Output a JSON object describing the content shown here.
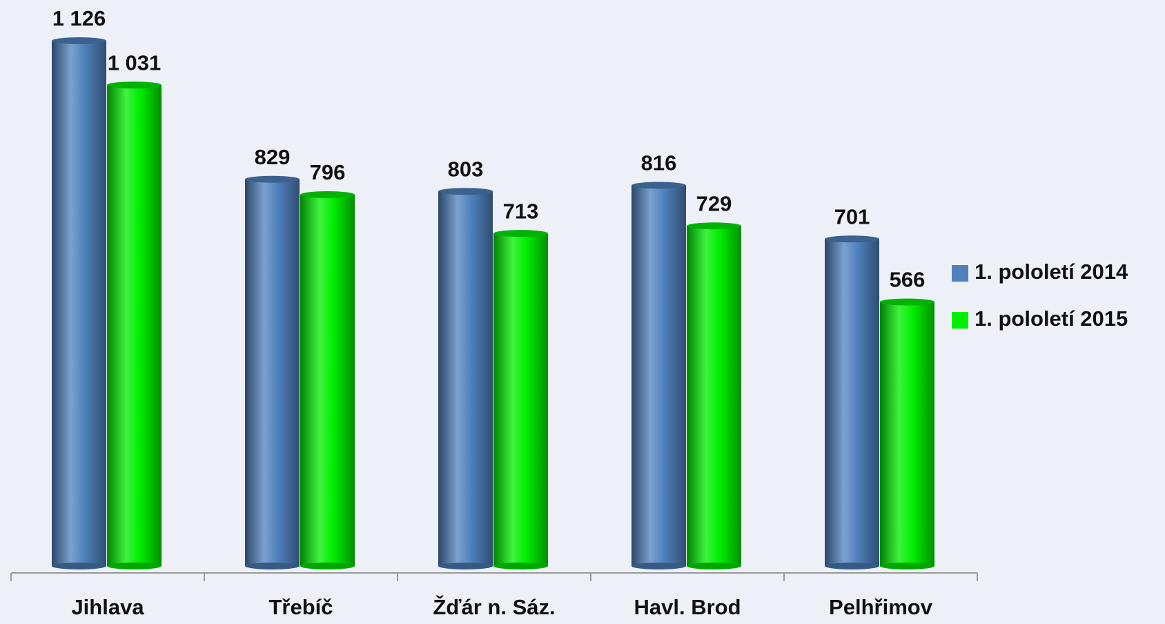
{
  "chart_data": {
    "type": "bar",
    "categories": [
      "Jihlava",
      "Třebíč",
      "Žďár n. Sáz.",
      "Havl. Brod",
      "Pelhřimov"
    ],
    "series": [
      {
        "name": "1. pololetí 2014",
        "color": "#4f81bd",
        "values": [
          1126,
          829,
          803,
          816,
          701
        ],
        "value_labels": [
          "1 126",
          "829",
          "803",
          "816",
          "701"
        ]
      },
      {
        "name": "1. pololetí 2015",
        "color": "#00ee00",
        "values": [
          1031,
          796,
          713,
          729,
          566
        ],
        "value_labels": [
          "1 031",
          "796",
          "713",
          "729",
          "566"
        ]
      }
    ],
    "legend": "right"
  }
}
